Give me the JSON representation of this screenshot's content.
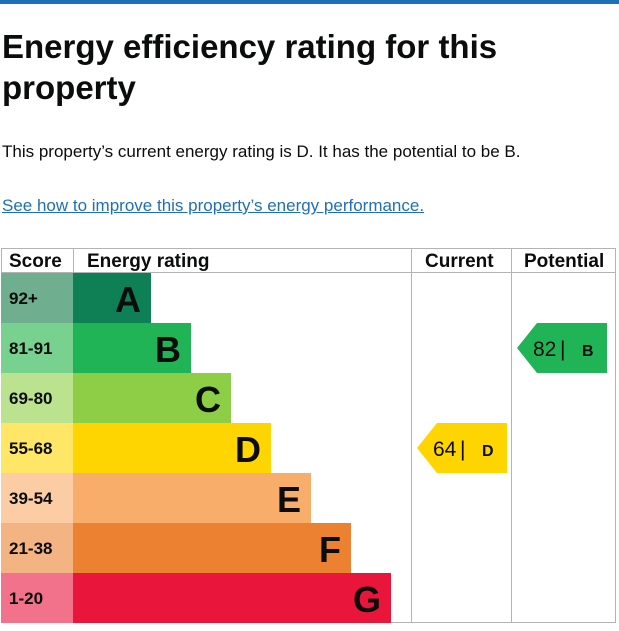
{
  "page": {
    "title": "Energy efficiency rating for this property",
    "summary": "This property’s current energy rating is D. It has the potential to be B.",
    "improve_link": "See how to improve this property’s energy performance."
  },
  "epc_table": {
    "headers": {
      "score": "Score",
      "rating": "Energy rating",
      "current": "Current",
      "potential": "Potential"
    },
    "bands": [
      {
        "score": "92+",
        "letter": "A",
        "color": "#0f7f55",
        "score_color": "#6fae8f"
      },
      {
        "score": "81-91",
        "letter": "B",
        "color": "#20b456",
        "score_color": "#79d190"
      },
      {
        "score": "69-80",
        "letter": "C",
        "color": "#8dce46",
        "score_color": "#bbe28f"
      },
      {
        "score": "55-68",
        "letter": "D",
        "color": "#ffd500",
        "score_color": "#ffe666"
      },
      {
        "score": "39-54",
        "letter": "E",
        "color": "#f8ad6b",
        "score_color": "#fccda5"
      },
      {
        "score": "21-38",
        "letter": "F",
        "color": "#ec8231",
        "score_color": "#f4b383"
      },
      {
        "score": "1-20",
        "letter": "G",
        "color": "#e9153b",
        "score_color": "#f2718b"
      }
    ],
    "current": {
      "value": "64",
      "separator": "|",
      "letter": "D",
      "color": "#ffd500",
      "band_index": 3
    },
    "potential": {
      "value": "82",
      "separator": "|",
      "letter": "B",
      "color": "#20b456",
      "band_index": 1
    }
  },
  "colors": {
    "link": "#1d70b8",
    "top_bar": "#1d70b8",
    "grid": "#b1b4b6"
  }
}
